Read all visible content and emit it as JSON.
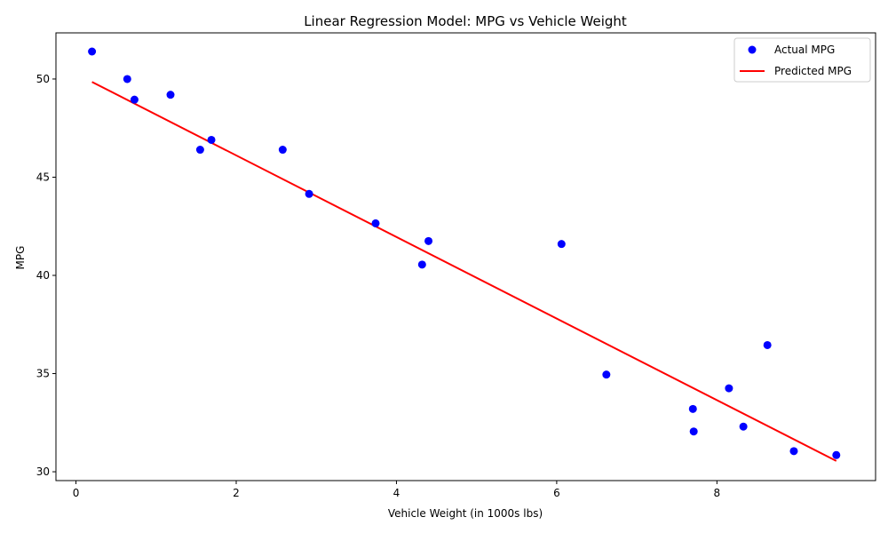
{
  "chart_data": {
    "type": "scatter",
    "title": "Linear Regression Model: MPG vs Vehicle Weight",
    "xlabel": "Vehicle Weight (in 1000s lbs)",
    "ylabel": "MPG",
    "xlim": [
      -0.25,
      9.98
    ],
    "ylim": [
      29.55,
      52.35
    ],
    "xticks": [
      0,
      2,
      4,
      6,
      8
    ],
    "yticks": [
      30,
      35,
      40,
      45,
      50
    ],
    "grid": false,
    "legend_position": "top-right",
    "series": [
      {
        "name": "Actual MPG",
        "kind": "scatter",
        "color": "#0000ff",
        "points": [
          {
            "x": 0.2,
            "y": 51.4
          },
          {
            "x": 0.64,
            "y": 50.0
          },
          {
            "x": 0.73,
            "y": 48.95
          },
          {
            "x": 1.18,
            "y": 49.2
          },
          {
            "x": 1.55,
            "y": 46.4
          },
          {
            "x": 1.69,
            "y": 46.9
          },
          {
            "x": 2.58,
            "y": 46.4
          },
          {
            "x": 2.91,
            "y": 44.15
          },
          {
            "x": 3.74,
            "y": 42.65
          },
          {
            "x": 4.32,
            "y": 40.55
          },
          {
            "x": 4.4,
            "y": 41.75
          },
          {
            "x": 6.06,
            "y": 41.6
          },
          {
            "x": 6.62,
            "y": 34.95
          },
          {
            "x": 7.7,
            "y": 33.2
          },
          {
            "x": 7.71,
            "y": 32.05
          },
          {
            "x": 8.15,
            "y": 34.25
          },
          {
            "x": 8.33,
            "y": 32.3
          },
          {
            "x": 8.63,
            "y": 36.45
          },
          {
            "x": 8.96,
            "y": 31.05
          },
          {
            "x": 9.49,
            "y": 30.85
          }
        ]
      },
      {
        "name": "Predicted MPG",
        "kind": "line",
        "color": "#ff0000",
        "points": [
          {
            "x": 0.2,
            "y": 49.85
          },
          {
            "x": 9.49,
            "y": 30.55
          }
        ]
      }
    ]
  }
}
